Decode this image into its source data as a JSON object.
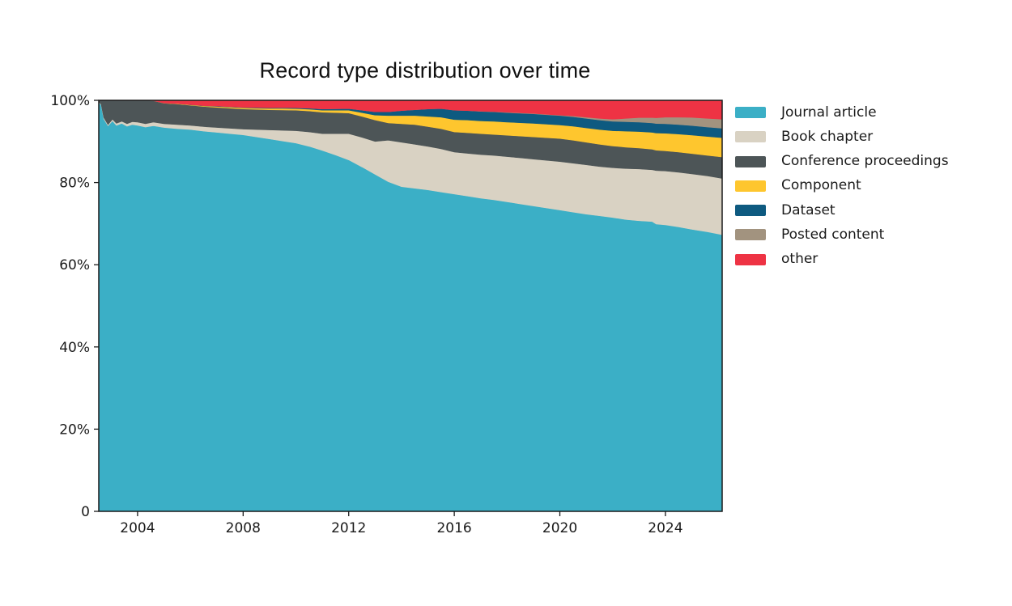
{
  "page": {
    "background_color": "#ffffff"
  },
  "chart_data": {
    "type": "area",
    "stacked": true,
    "units": "percent",
    "title": "Record type distribution over time",
    "xlabel": "",
    "ylabel": "",
    "grid": false,
    "legend_position": "right",
    "x_range": [
      2002.53,
      2026.15
    ],
    "y_range": [
      0,
      100
    ],
    "x_ticks": [
      {
        "value": 2004,
        "label": "2004"
      },
      {
        "value": 2008,
        "label": "2008"
      },
      {
        "value": 2012,
        "label": "2012"
      },
      {
        "value": 2016,
        "label": "2016"
      },
      {
        "value": 2020,
        "label": "2020"
      },
      {
        "value": 2024,
        "label": "2024"
      }
    ],
    "y_ticks": [
      {
        "value": 0,
        "label": "0"
      },
      {
        "value": 20,
        "label": "20%"
      },
      {
        "value": 40,
        "label": "40%"
      },
      {
        "value": 60,
        "label": "60%"
      },
      {
        "value": 80,
        "label": "80%"
      },
      {
        "value": 100,
        "label": "100%"
      }
    ],
    "axis_color": "#1a1a1a",
    "x": [
      2002.53,
      2002.62,
      2002.72,
      2002.88,
      2003.05,
      2003.2,
      2003.4,
      2003.6,
      2003.8,
      2004.0,
      2004.3,
      2004.6,
      2005.0,
      2005.5,
      2006.0,
      2006.5,
      2007.0,
      2007.5,
      2008.0,
      2008.5,
      2009.0,
      2009.5,
      2010.0,
      2010.5,
      2011.0,
      2011.5,
      2012.0,
      2012.5,
      2013.0,
      2013.5,
      2014.0,
      2014.5,
      2015.0,
      2015.5,
      2016.0,
      2016.5,
      2017.0,
      2017.5,
      2018.0,
      2018.5,
      2019.0,
      2019.5,
      2020.0,
      2020.5,
      2021.0,
      2021.5,
      2022.0,
      2022.5,
      2023.0,
      2023.5,
      2023.65,
      2024.0,
      2024.5,
      2025.0,
      2025.6,
      2026.15
    ],
    "series": [
      {
        "name": "Journal article",
        "color": "#3bafc6",
        "values": [
          99.6,
          98.8,
          95.5,
          93.8,
          95.0,
          93.9,
          94.4,
          93.7,
          94.1,
          93.9,
          93.5,
          93.8,
          93.4,
          93.1,
          92.9,
          92.5,
          92.2,
          91.9,
          91.6,
          91.1,
          90.6,
          90.1,
          89.6,
          88.8,
          87.8,
          86.7,
          85.5,
          83.8,
          82.0,
          80.2,
          79.0,
          78.6,
          78.2,
          77.7,
          77.2,
          76.7,
          76.2,
          75.8,
          75.3,
          74.8,
          74.3,
          73.8,
          73.3,
          72.8,
          72.3,
          71.9,
          71.5,
          71.0,
          70.7,
          70.5,
          69.9,
          69.7,
          69.2,
          68.6,
          68.0,
          67.3
        ]
      },
      {
        "name": "Book chapter",
        "color": "#d9d2c3",
        "values": [
          0.1,
          0.2,
          0.3,
          0.3,
          0.4,
          0.5,
          0.5,
          0.6,
          0.7,
          0.8,
          0.8,
          0.9,
          0.9,
          1.0,
          1.0,
          1.1,
          1.2,
          1.3,
          1.4,
          1.8,
          2.2,
          2.6,
          3.0,
          3.5,
          4.1,
          5.2,
          6.4,
          7.2,
          8.0,
          10.1,
          10.8,
          10.7,
          10.6,
          10.5,
          10.2,
          10.4,
          10.6,
          10.8,
          11.0,
          11.2,
          11.4,
          11.6,
          11.8,
          11.9,
          12.0,
          12.0,
          12.1,
          12.4,
          12.6,
          12.6,
          13.0,
          13.1,
          13.3,
          13.5,
          13.6,
          13.7
        ]
      },
      {
        "name": "Conference proceedings",
        "color": "#4d5557",
        "values": [
          0.3,
          1.0,
          4.2,
          5.9,
          4.6,
          5.6,
          5.1,
          5.7,
          5.2,
          5.3,
          5.7,
          5.2,
          5.0,
          5.0,
          4.9,
          4.9,
          4.9,
          4.9,
          4.9,
          4.9,
          4.9,
          4.95,
          5.0,
          5.1,
          5.2,
          5.1,
          5.0,
          5.1,
          5.2,
          4.2,
          4.5,
          4.8,
          4.8,
          4.9,
          4.9,
          5.0,
          5.1,
          5.1,
          5.2,
          5.3,
          5.4,
          5.5,
          5.6,
          5.6,
          5.5,
          5.4,
          5.3,
          5.2,
          5.1,
          5.0,
          4.95,
          4.9,
          4.9,
          4.95,
          5.0,
          5.2
        ]
      },
      {
        "name": "Component",
        "color": "#fec62e",
        "values": [
          0,
          0,
          0,
          0,
          0,
          0,
          0,
          0,
          0,
          0,
          0,
          0,
          0.05,
          0.1,
          0.1,
          0.15,
          0.2,
          0.25,
          0.3,
          0.3,
          0.35,
          0.4,
          0.4,
          0.45,
          0.5,
          0.6,
          0.7,
          0.9,
          1.2,
          1.8,
          2.0,
          2.2,
          2.5,
          2.8,
          3.0,
          3.1,
          3.1,
          3.2,
          3.2,
          3.25,
          3.3,
          3.3,
          3.3,
          3.4,
          3.5,
          3.6,
          3.7,
          3.9,
          4.0,
          4.1,
          4.2,
          4.3,
          4.4,
          4.5,
          4.6,
          4.7
        ]
      },
      {
        "name": "Dataset",
        "color": "#0e5a80",
        "values": [
          0,
          0,
          0,
          0,
          0,
          0,
          0,
          0,
          0,
          0,
          0,
          0,
          0,
          0,
          0.05,
          0.05,
          0.1,
          0.1,
          0.1,
          0.15,
          0.15,
          0.2,
          0.2,
          0.25,
          0.3,
          0.35,
          0.4,
          0.6,
          0.8,
          0.9,
          1.2,
          1.4,
          1.8,
          2.1,
          2.3,
          2.3,
          2.3,
          2.3,
          2.3,
          2.3,
          2.3,
          2.3,
          2.3,
          2.3,
          2.3,
          2.3,
          2.3,
          2.3,
          2.3,
          2.3,
          2.3,
          2.3,
          2.3,
          2.3,
          2.3,
          2.3
        ]
      },
      {
        "name": "Posted content",
        "color": "#a2937f",
        "values": [
          0,
          0,
          0,
          0,
          0,
          0,
          0,
          0,
          0,
          0,
          0,
          0,
          0,
          0,
          0,
          0,
          0,
          0,
          0,
          0,
          0,
          0,
          0,
          0,
          0,
          0,
          0,
          0,
          0,
          0,
          0,
          0,
          0,
          0,
          0,
          0,
          0.05,
          0.05,
          0.1,
          0.1,
          0.1,
          0.1,
          0.1,
          0.2,
          0.3,
          0.4,
          0.5,
          0.8,
          1.1,
          1.3,
          1.4,
          1.6,
          1.8,
          2.0,
          2.1,
          2.2
        ]
      },
      {
        "name": "other",
        "color": "#ee3344",
        "values": [
          0,
          0,
          0,
          0,
          0,
          0,
          0,
          0,
          0,
          0,
          0,
          0.1,
          0.65,
          0.8,
          1.05,
          1.3,
          1.4,
          1.55,
          1.7,
          1.75,
          1.8,
          1.75,
          1.8,
          1.9,
          2.1,
          2.05,
          2.0,
          2.4,
          2.8,
          2.8,
          2.5,
          2.3,
          2.1,
          2.0,
          2.4,
          2.5,
          2.65,
          2.75,
          2.9,
          3.05,
          3.2,
          3.4,
          3.6,
          3.8,
          4.1,
          4.4,
          4.6,
          4.4,
          4.2,
          4.2,
          4.25,
          4.1,
          4.1,
          4.15,
          4.4,
          4.6
        ]
      }
    ]
  }
}
